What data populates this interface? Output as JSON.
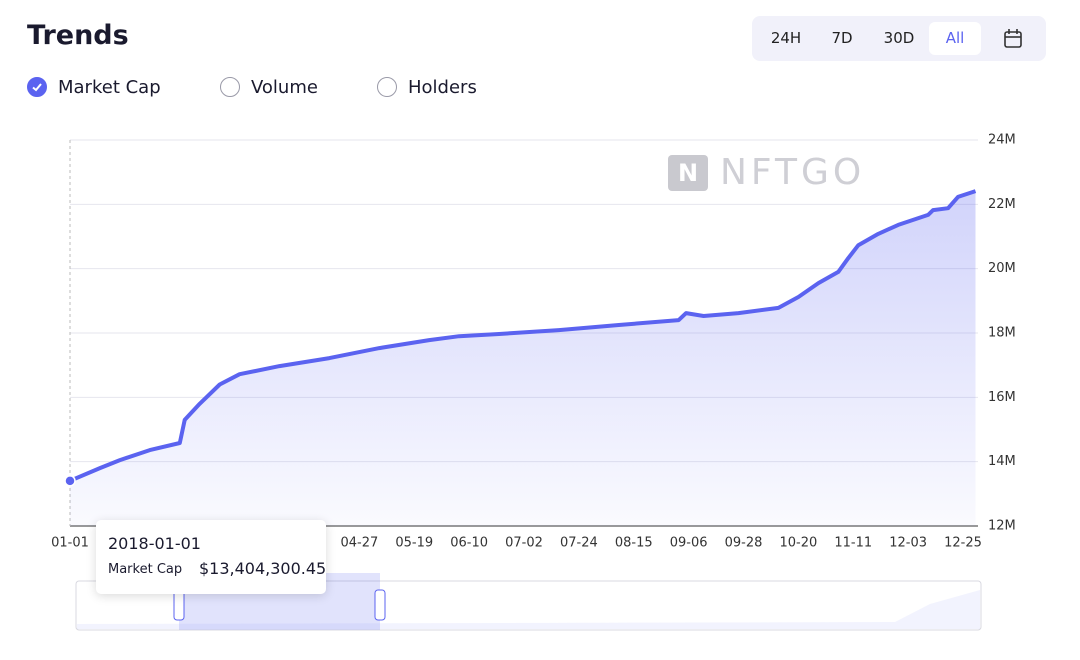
{
  "header": {
    "title": "Trends",
    "tabs": [
      "24H",
      "7D",
      "30D",
      "All"
    ],
    "active_tab": "All",
    "metrics": [
      {
        "label": "Market Cap",
        "checked": true
      },
      {
        "label": "Volume",
        "checked": false
      },
      {
        "label": "Holders",
        "checked": false
      }
    ]
  },
  "watermark": "NFTGO",
  "chart_data": {
    "type": "area",
    "series": [
      {
        "name": "Market Cap",
        "color": "#5b63f0",
        "x": [
          "01-01",
          "01-13",
          "01-21",
          "02-02",
          "02-14",
          "02-16",
          "02-22",
          "03-02",
          "03-10",
          "03-26",
          "04-15",
          "05-05",
          "05-25",
          "06-06",
          "06-22",
          "07-16",
          "08-09",
          "09-02",
          "09-05",
          "09-12",
          "09-26",
          "10-12",
          "10-20",
          "10-28",
          "11-05",
          "11-09",
          "11-13",
          "11-21",
          "11-29",
          "12-11",
          "12-13",
          "12-19",
          "12-23",
          "12-30"
        ],
        "values": [
          13404300.45,
          13800000,
          14050000,
          14360000,
          14580000,
          15300000,
          15800000,
          16400000,
          16720000,
          16970000,
          17220000,
          17530000,
          17780000,
          17900000,
          17970000,
          18090000,
          18250000,
          18400000,
          18620000,
          18530000,
          18620000,
          18780000,
          19120000,
          19550000,
          19900000,
          20330000,
          20730000,
          21080000,
          21360000,
          21670000,
          21820000,
          21880000,
          22230000,
          22410000
        ]
      }
    ],
    "xlim": [
      "01-01",
      "12-31"
    ],
    "xticks": [
      "01-01",
      "04-27",
      "05-19",
      "06-10",
      "07-02",
      "07-24",
      "08-15",
      "09-06",
      "09-28",
      "10-20",
      "11-11",
      "12-03",
      "12-25"
    ],
    "ylim": [
      12000000,
      24000000
    ],
    "yticks": [
      {
        "value": 12000000,
        "label": "12M"
      },
      {
        "value": 14000000,
        "label": "14M"
      },
      {
        "value": 16000000,
        "label": "16M"
      },
      {
        "value": 18000000,
        "label": "18M"
      },
      {
        "value": 20000000,
        "label": "20M"
      },
      {
        "value": 22000000,
        "label": "22M"
      },
      {
        "value": 24000000,
        "label": "24M"
      }
    ],
    "grid": true
  },
  "tooltip": {
    "date": "2018-01-01",
    "label": "Market Cap",
    "value": "$13,404,300.45"
  }
}
